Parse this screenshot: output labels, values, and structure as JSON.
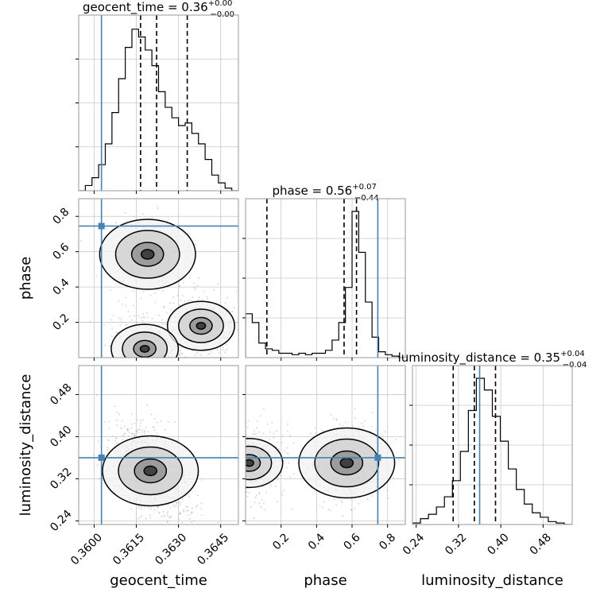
{
  "chart_data": {
    "type": "corner",
    "parameters": [
      "geocent_time",
      "phase",
      "luminosity_distance"
    ],
    "axis_labels": [
      "geocent_time",
      "phase",
      "luminosity_distance"
    ],
    "titles": [
      {
        "name": "geocent_time",
        "median": "0.36",
        "plus": "+0.00",
        "minus": "−0.00"
      },
      {
        "name": "phase",
        "median": "0.56",
        "plus": "+0.07",
        "minus": "−0.44"
      },
      {
        "name": "luminosity_distance",
        "median": "0.35",
        "plus": "+0.04",
        "minus": "−0.04"
      }
    ],
    "ranges": [
      [
        0.35945,
        0.36513
      ],
      [
        0.0,
        0.9
      ],
      [
        0.233,
        0.535
      ]
    ],
    "ticks": [
      {
        "values": [
          0.36,
          0.3615,
          0.363,
          0.3645
        ],
        "labels": [
          "0.3600",
          "0.3615",
          "0.3630",
          "0.3645"
        ]
      },
      {
        "values": [
          0.2,
          0.4,
          0.6,
          0.8
        ],
        "labels": [
          "0.2",
          "0.4",
          "0.6",
          "0.8"
        ]
      },
      {
        "values": [
          0.24,
          0.32,
          0.4,
          0.48
        ],
        "labels": [
          "0.24",
          "0.32",
          "0.40",
          "0.48"
        ]
      }
    ],
    "truths": [
      0.36026,
      0.745,
      0.36
    ],
    "quantiles": [
      [
        0.36165,
        0.36222,
        0.36331
      ],
      [
        0.12,
        0.555,
        0.625
      ],
      [
        0.31,
        0.35,
        0.39
      ]
    ],
    "histograms": [
      {
        "parameter": "geocent_time",
        "edges_range": [
          0.35945,
          0.36513
        ],
        "counts": [
          0,
          2,
          5,
          10,
          18,
          30,
          43,
          55,
          62,
          59,
          54,
          48,
          38,
          32,
          28,
          25,
          26,
          22,
          18,
          12,
          6,
          3,
          1,
          0
        ]
      },
      {
        "parameter": "phase",
        "edges_range": [
          0.0,
          0.9
        ],
        "counts": [
          30,
          24,
          10,
          6,
          5,
          3,
          3,
          2,
          3,
          2,
          3,
          3,
          5,
          12,
          24,
          48,
          100,
          72,
          38,
          14,
          4,
          2,
          1,
          0
        ]
      },
      {
        "parameter": "luminosity_distance",
        "edges_range": [
          0.233,
          0.535
        ],
        "counts": [
          1,
          4,
          7,
          12,
          19,
          30,
          50,
          78,
          100,
          92,
          74,
          57,
          38,
          24,
          14,
          8,
          5,
          2,
          1,
          0
        ]
      }
    ],
    "joint_modes": [
      {
        "pair": [
          "geocent_time",
          "phase"
        ],
        "centers": [
          [
            0.3619,
            0.585
          ],
          [
            0.3638,
            0.18
          ],
          [
            0.3618,
            0.05
          ]
        ]
      },
      {
        "pair": [
          "geocent_time",
          "luminosity_distance"
        ],
        "centers": [
          [
            0.362,
            0.335
          ]
        ]
      },
      {
        "pair": [
          "phase",
          "luminosity_distance"
        ],
        "centers": [
          [
            0.57,
            0.35
          ],
          [
            0.02,
            0.35
          ]
        ]
      }
    ],
    "colors": {
      "truth": "#4682b4",
      "hist": "#000000",
      "grid": "#c8c8c8",
      "scatter": "#9a9a9a"
    },
    "grid": true
  }
}
